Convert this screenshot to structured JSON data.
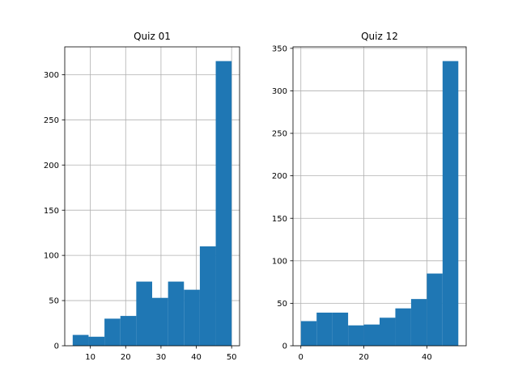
{
  "chart_data": [
    {
      "type": "bar",
      "title": "Quiz 01",
      "bin_edges": [
        5,
        9.5,
        14,
        18.5,
        23,
        27.5,
        32,
        36.5,
        41,
        45.5,
        50
      ],
      "values": [
        12,
        10,
        30,
        33,
        71,
        53,
        71,
        62,
        110,
        315
      ],
      "xlim": [
        2.75,
        52.25
      ],
      "ylim": [
        0,
        330.75
      ],
      "xticks": [
        10,
        20,
        30,
        40,
        50
      ],
      "yticks": [
        0,
        50,
        100,
        150,
        200,
        250,
        300
      ],
      "grid": true,
      "color": "#1f77b4"
    },
    {
      "type": "bar",
      "title": "Quiz 12",
      "bin_edges": [
        0,
        5,
        10,
        15,
        20,
        25,
        30,
        35,
        40,
        45,
        50
      ],
      "values": [
        29,
        39,
        39,
        24,
        25,
        33,
        44,
        55,
        85,
        335
      ],
      "xlim": [
        -2.5,
        52.5
      ],
      "ylim": [
        0,
        351.75
      ],
      "xticks": [
        0,
        20,
        40
      ],
      "yticks": [
        0,
        50,
        100,
        150,
        200,
        250,
        300,
        350
      ],
      "grid": true,
      "color": "#1f77b4"
    }
  ]
}
